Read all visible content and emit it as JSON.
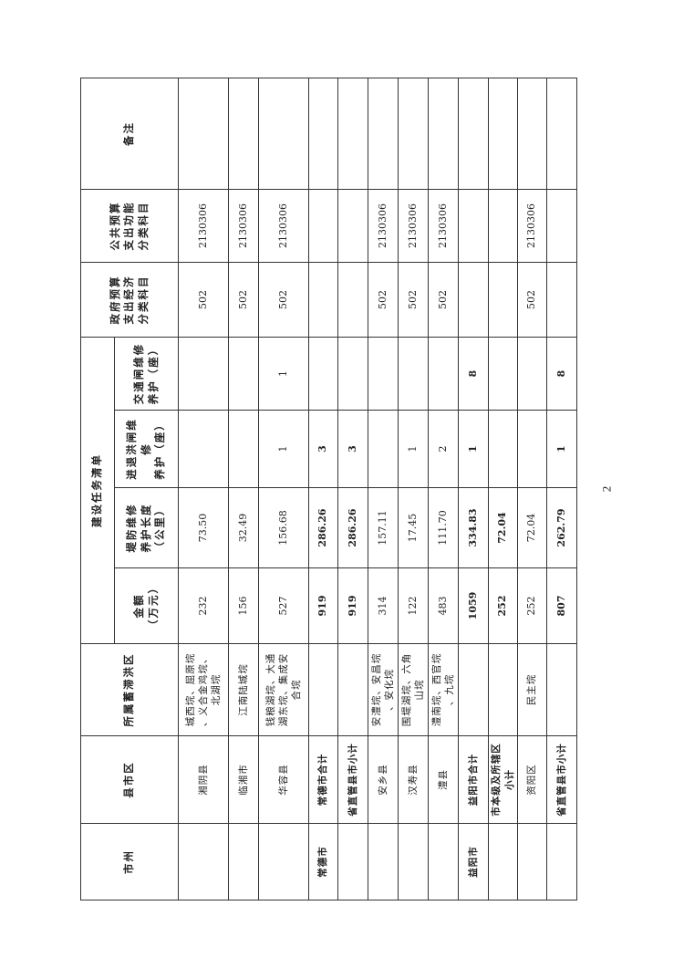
{
  "header": {
    "city": "市州",
    "county": "县市区",
    "flood_area": "所属蓄滞洪区",
    "task_list": "建设任务清单",
    "amount": "金额\n（万元）",
    "dike_length": "堤防维修\n养护长度\n（公里）",
    "sluice": "进退洪闸维修\n养护（座）",
    "traffic_gate": "交通闸维修\n养护（座）",
    "gov_econ": "政府预算\n支出经济\n分类科目",
    "public_func": "公共预算\n支出功能\n分类科目",
    "remark": "备注"
  },
  "rows": [
    {
      "city": "",
      "county": "湘阴县",
      "area": "城西垸、屈原垸\n、义合金鸡垸、\n北湖垸",
      "amount": "232",
      "dike": "73.50",
      "sluice": "",
      "traffic": "",
      "econ": "502",
      "func": "2130306",
      "remark": "",
      "bold": false
    },
    {
      "city": "",
      "county": "临湘市",
      "area": "江南陆城垸",
      "amount": "156",
      "dike": "32.49",
      "sluice": "",
      "traffic": "",
      "econ": "502",
      "func": "2130306",
      "remark": "",
      "bold": false
    },
    {
      "city": "",
      "county": "华容县",
      "area": "钱粮湖垸、大通\n湖东垸、集成安\n合垸",
      "amount": "527",
      "dike": "156.68",
      "sluice": "1",
      "traffic": "1",
      "econ": "502",
      "func": "2130306",
      "remark": "",
      "bold": false
    },
    {
      "city": "常德市",
      "county": "常德市合计",
      "area": "",
      "amount": "919",
      "dike": "286.26",
      "sluice": "3",
      "traffic": "",
      "econ": "",
      "func": "",
      "remark": "",
      "bold": true
    },
    {
      "city": "",
      "county": "省直管县市小计",
      "area": "",
      "amount": "919",
      "dike": "286.26",
      "sluice": "3",
      "traffic": "",
      "econ": "",
      "func": "",
      "remark": "",
      "bold": true
    },
    {
      "city": "",
      "county": "安乡县",
      "area": "安澧垸、安昌垸\n、安化垸",
      "amount": "314",
      "dike": "157.11",
      "sluice": "",
      "traffic": "",
      "econ": "502",
      "func": "2130306",
      "remark": "",
      "bold": false
    },
    {
      "city": "",
      "county": "汉寿县",
      "area": "围堤湖垸、六角\n山垸",
      "amount": "122",
      "dike": "17.45",
      "sluice": "1",
      "traffic": "",
      "econ": "502",
      "func": "2130306",
      "remark": "",
      "bold": false
    },
    {
      "city": "",
      "county": "澧县",
      "area": "澧南垸、西官垸\n、九垸",
      "amount": "483",
      "dike": "111.70",
      "sluice": "2",
      "traffic": "",
      "econ": "502",
      "func": "2130306",
      "remark": "",
      "bold": false
    },
    {
      "city": "益阳市",
      "county": "益阳市合计",
      "area": "",
      "amount": "1059",
      "dike": "334.83",
      "sluice": "1",
      "traffic": "8",
      "econ": "",
      "func": "",
      "remark": "",
      "bold": true
    },
    {
      "city": "",
      "county": "市本级及所辖区\n小计",
      "area": "",
      "amount": "252",
      "dike": "72.04",
      "sluice": "",
      "traffic": "",
      "econ": "",
      "func": "",
      "remark": "",
      "bold": true
    },
    {
      "city": "",
      "county": "资阳区",
      "area": "民主垸",
      "amount": "252",
      "dike": "72.04",
      "sluice": "",
      "traffic": "",
      "econ": "502",
      "func": "2130306",
      "remark": "",
      "bold": false
    },
    {
      "city": "",
      "county": "省直管县市小计",
      "area": "",
      "amount": "807",
      "dike": "262.79",
      "sluice": "1",
      "traffic": "8",
      "econ": "",
      "func": "",
      "remark": "",
      "bold": true
    }
  ],
  "page_number": "2"
}
